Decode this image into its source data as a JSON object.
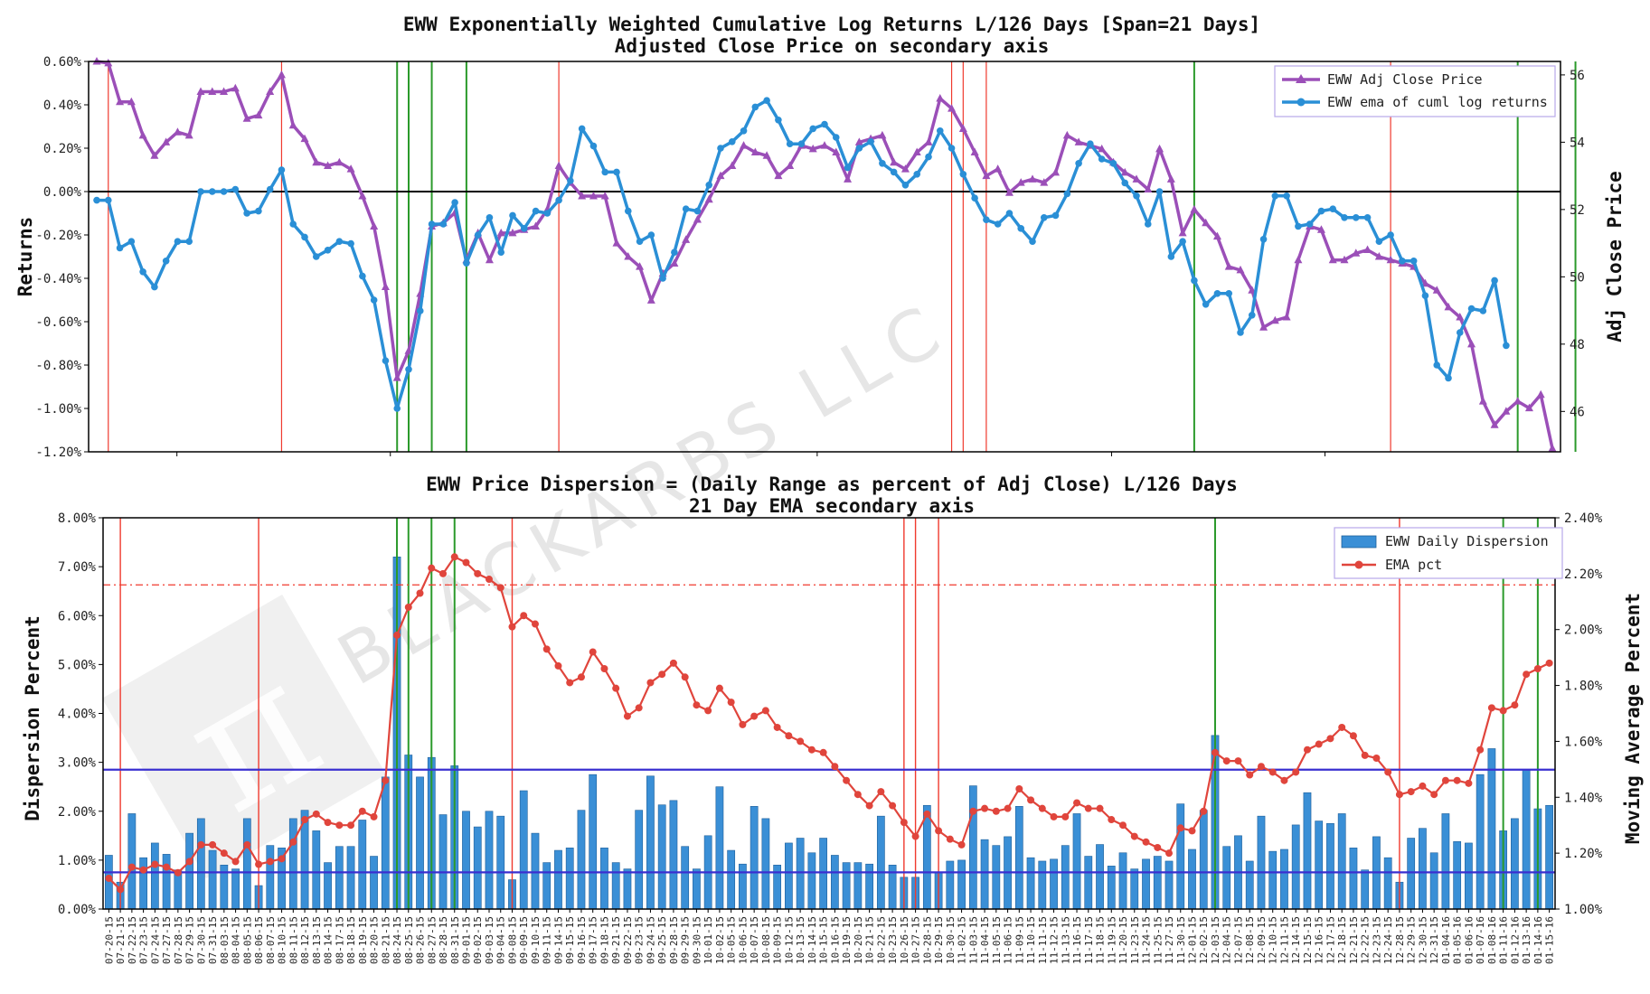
{
  "chart_data": [
    {
      "type": "line",
      "title": "EWW Exponentially Weighted Cumulative Log Returns L/126 Days [Span=21 Days]",
      "subtitle": "Adjusted Close Price on secondary axis",
      "ylabel": "Returns",
      "ylabel_right": "Adj Close Price",
      "ylim": [
        -1.2,
        0.6
      ],
      "ylim_right": [
        44.8,
        56.4
      ],
      "yticks": [
        "0.60%",
        "0.40%",
        "0.20%",
        "0.00%",
        "-0.20%",
        "-0.40%",
        "-0.60%",
        "-0.80%",
        "-1.00%",
        "-1.20%"
      ],
      "yticks_right": [
        "56",
        "54",
        "52",
        "50",
        "48",
        "46"
      ],
      "legend_position": "top-right",
      "zero_line": true,
      "series": [
        {
          "name": "EWW Adj Close Price",
          "axis": "right",
          "color": "#9b4fb8",
          "marker": "triangle",
          "values": [
            56.4,
            56.35,
            55.2,
            55.2,
            54.2,
            53.6,
            54.0,
            54.3,
            54.2,
            55.5,
            55.5,
            55.5,
            55.6,
            54.7,
            54.8,
            55.5,
            56.0,
            54.5,
            54.1,
            53.4,
            53.3,
            53.4,
            53.2,
            52.4,
            51.5,
            49.7,
            47.0,
            47.8,
            49.5,
            51.5,
            51.6,
            51.9,
            50.5,
            51.3,
            50.5,
            51.3,
            51.3,
            51.4,
            51.5,
            52.0,
            53.3,
            52.8,
            52.4,
            52.4,
            52.4,
            51.0,
            50.6,
            50.3,
            49.3,
            50.1,
            50.4,
            51.1,
            51.7,
            52.3,
            53.0,
            53.3,
            53.9,
            53.7,
            53.6,
            53.0,
            53.3,
            53.9,
            53.8,
            53.9,
            53.7,
            52.9,
            54.0,
            54.1,
            54.2,
            53.4,
            53.2,
            53.7,
            54.0,
            55.3,
            55.0,
            54.4,
            53.7,
            53.0,
            53.2,
            52.5,
            52.8,
            52.9,
            52.8,
            53.1,
            54.2,
            54.0,
            53.9,
            53.8,
            53.4,
            53.1,
            52.9,
            52.6,
            53.8,
            52.9,
            51.3,
            52.0,
            51.6,
            51.2,
            50.3,
            50.2,
            49.6,
            48.5,
            48.7,
            48.8,
            50.5,
            51.5,
            51.4,
            50.5,
            50.5,
            50.7,
            50.8,
            50.6,
            50.5,
            50.4,
            50.3,
            49.8,
            49.6,
            49.1,
            48.8,
            48.0,
            46.3,
            45.6,
            46.0,
            46.3,
            46.1,
            46.5,
            44.9
          ]
        },
        {
          "name": "EWW ema of cuml log returns",
          "axis": "left",
          "color": "#2a8fd6",
          "marker": "circle",
          "values": [
            -0.04,
            -0.04,
            -0.26,
            -0.23,
            -0.37,
            -0.44,
            -0.32,
            -0.23,
            -0.23,
            -0.0,
            -0.0,
            -0.0,
            0.01,
            -0.1,
            -0.09,
            0.01,
            0.1,
            -0.15,
            -0.21,
            -0.3,
            -0.27,
            -0.23,
            -0.24,
            -0.39,
            -0.5,
            -0.78,
            -1.0,
            -0.82,
            -0.55,
            -0.15,
            -0.15,
            -0.05,
            -0.33,
            -0.2,
            -0.12,
            -0.28,
            -0.11,
            -0.17,
            -0.09,
            -0.1,
            -0.04,
            0.05,
            0.29,
            0.21,
            0.09,
            0.09,
            -0.09,
            -0.23,
            -0.2,
            -0.4,
            -0.28,
            -0.08,
            -0.09,
            0.03,
            0.2,
            0.23,
            0.28,
            0.39,
            0.42,
            0.33,
            0.22,
            0.22,
            0.29,
            0.31,
            0.25,
            0.11,
            0.2,
            0.23,
            0.13,
            0.09,
            0.03,
            0.08,
            0.16,
            0.28,
            0.2,
            0.08,
            -0.03,
            -0.13,
            -0.15,
            -0.1,
            -0.17,
            -0.23,
            -0.12,
            -0.11,
            -0.01,
            0.13,
            0.22,
            0.15,
            0.13,
            0.04,
            -0.02,
            -0.15,
            0.0,
            -0.3,
            -0.23,
            -0.41,
            -0.52,
            -0.47,
            -0.47,
            -0.65,
            -0.57,
            -0.22,
            -0.02,
            -0.02,
            -0.16,
            -0.15,
            -0.09,
            -0.08,
            -0.12,
            -0.12,
            -0.12,
            -0.23,
            -0.2,
            -0.32,
            -0.32,
            -0.48,
            -0.8,
            -0.86,
            -0.65,
            -0.54,
            -0.55,
            -0.41,
            -0.71
          ]
        }
      ],
      "vlines": [
        {
          "index": 1,
          "color": "red"
        },
        {
          "index": 16,
          "color": "red"
        },
        {
          "index": 26,
          "color": "green"
        },
        {
          "index": 27,
          "color": "green"
        },
        {
          "index": 29,
          "color": "green"
        },
        {
          "index": 32,
          "color": "green"
        },
        {
          "index": 40,
          "color": "red"
        },
        {
          "index": 74,
          "color": "red"
        },
        {
          "index": 75,
          "color": "red"
        },
        {
          "index": 77,
          "color": "red"
        },
        {
          "index": 95,
          "color": "green"
        },
        {
          "index": 112,
          "color": "red"
        },
        {
          "index": 123,
          "color": "green"
        },
        {
          "index": 128,
          "color": "green"
        }
      ]
    },
    {
      "type": "bar",
      "title": "EWW Price Dispersion = (Daily Range as percent of Adj Close) L/126 Days",
      "subtitle": "21 Day EMA secondary axis",
      "ylabel": "Dispersion Percent",
      "ylabel_right": "Moving Average Percent",
      "ylim": [
        0,
        8
      ],
      "ylim_right": [
        1.0,
        2.4
      ],
      "yticks": [
        "8.00%",
        "7.00%",
        "6.00%",
        "5.00%",
        "4.00%",
        "3.00%",
        "2.00%",
        "1.00%",
        "0.00%"
      ],
      "yticks_right": [
        "2.40%",
        "2.20%",
        "2.00%",
        "1.80%",
        "1.60%",
        "1.40%",
        "1.20%",
        "1.00%"
      ],
      "legend_position": "top-right",
      "hlines": [
        {
          "value": 2.85,
          "axis": "left",
          "color": "#3a2fd0",
          "style": "solid"
        },
        {
          "value": 0.75,
          "axis": "left",
          "color": "#3a2fd0",
          "style": "solid"
        },
        {
          "value": 2.16,
          "axis": "right",
          "color": "red",
          "style": "dashdot"
        }
      ],
      "categories": [
        "07-20-15",
        "07-21-15",
        "07-22-15",
        "07-23-15",
        "07-24-15",
        "07-27-15",
        "07-28-15",
        "07-29-15",
        "07-30-15",
        "07-31-15",
        "08-03-15",
        "08-04-15",
        "08-05-15",
        "08-06-15",
        "08-07-15",
        "08-10-15",
        "08-11-15",
        "08-12-15",
        "08-13-15",
        "08-14-15",
        "08-17-15",
        "08-18-15",
        "08-19-15",
        "08-20-15",
        "08-21-15",
        "08-24-15",
        "08-25-15",
        "08-26-15",
        "08-27-15",
        "08-28-15",
        "08-31-15",
        "09-01-15",
        "09-02-15",
        "09-03-15",
        "09-04-15",
        "09-08-15",
        "09-09-15",
        "09-10-15",
        "09-11-15",
        "09-14-15",
        "09-15-15",
        "09-16-15",
        "09-17-15",
        "09-18-15",
        "09-21-15",
        "09-22-15",
        "09-23-15",
        "09-24-15",
        "09-25-15",
        "09-28-15",
        "09-29-15",
        "09-30-15",
        "10-01-15",
        "10-02-15",
        "10-05-15",
        "10-06-15",
        "10-07-15",
        "10-08-15",
        "10-09-15",
        "10-12-15",
        "10-13-15",
        "10-14-15",
        "10-15-15",
        "10-16-15",
        "10-19-15",
        "10-20-15",
        "10-21-15",
        "10-22-15",
        "10-23-15",
        "10-26-15",
        "10-27-15",
        "10-28-15",
        "10-29-15",
        "10-30-15",
        "11-02-15",
        "11-03-15",
        "11-04-15",
        "11-05-15",
        "11-06-15",
        "11-09-15",
        "11-10-15",
        "11-11-15",
        "11-12-15",
        "11-13-15",
        "11-16-15",
        "11-17-15",
        "11-18-15",
        "11-19-15",
        "11-20-15",
        "11-23-15",
        "11-24-15",
        "11-25-15",
        "11-27-15",
        "11-30-15",
        "12-01-15",
        "12-02-15",
        "12-03-15",
        "12-04-15",
        "12-07-15",
        "12-08-15",
        "12-09-15",
        "12-10-15",
        "12-11-15",
        "12-14-15",
        "12-15-15",
        "12-16-15",
        "12-17-15",
        "12-18-15",
        "12-21-15",
        "12-22-15",
        "12-23-15",
        "12-24-15",
        "12-28-15",
        "12-29-15",
        "12-30-15",
        "12-31-15",
        "01-04-16",
        "01-05-16",
        "01-06-16",
        "01-07-16",
        "01-08-16",
        "01-11-16",
        "01-12-16",
        "01-13-16",
        "01-14-16",
        "01-15-16"
      ],
      "series": [
        {
          "name": "EWW Daily Dispersion",
          "axis": "left",
          "color": "#3a8fd6",
          "kind": "bar",
          "values": [
            1.1,
            0.55,
            1.95,
            1.05,
            1.35,
            1.12,
            0.8,
            1.55,
            1.85,
            1.2,
            0.9,
            0.82,
            1.85,
            0.48,
            1.3,
            1.25,
            1.85,
            2.02,
            1.6,
            0.95,
            1.28,
            1.28,
            1.82,
            1.08,
            2.7,
            7.2,
            3.15,
            2.7,
            3.1,
            1.93,
            2.93,
            2.0,
            1.68,
            2.0,
            1.9,
            0.6,
            2.42,
            1.55,
            0.95,
            1.2,
            1.25,
            2.02,
            2.75,
            1.25,
            0.95,
            0.82,
            2.02,
            2.72,
            2.13,
            2.22,
            1.28,
            0.82,
            1.5,
            2.5,
            1.2,
            0.92,
            2.1,
            1.85,
            0.9,
            1.35,
            1.45,
            1.15,
            1.45,
            1.1,
            0.95,
            0.95,
            0.92,
            1.9,
            0.9,
            0.65,
            0.65,
            2.12,
            0.75,
            0.98,
            1.0,
            2.52,
            1.42,
            1.3,
            1.48,
            2.1,
            1.05,
            0.98,
            1.02,
            1.3,
            1.95,
            1.08,
            1.32,
            0.88,
            1.15,
            0.82,
            1.02,
            1.08,
            0.98,
            2.15,
            1.22,
            2.02,
            3.55,
            1.28,
            1.5,
            0.98,
            1.9,
            1.18,
            1.22,
            1.72,
            2.38,
            1.8,
            1.75,
            1.95,
            1.25,
            0.8,
            1.48,
            1.05,
            0.55,
            1.45,
            1.65,
            1.15,
            1.95,
            1.38,
            1.35,
            2.75,
            3.28,
            1.6,
            1.85,
            2.85,
            2.05,
            2.12
          ]
        },
        {
          "name": "EMA pct",
          "axis": "right",
          "color": "#e0453c",
          "kind": "line",
          "marker": "circle",
          "values": [
            1.11,
            1.07,
            1.15,
            1.14,
            1.16,
            1.15,
            1.13,
            1.17,
            1.23,
            1.23,
            1.2,
            1.17,
            1.23,
            1.16,
            1.17,
            1.18,
            1.24,
            1.32,
            1.34,
            1.31,
            1.3,
            1.3,
            1.35,
            1.33,
            1.46,
            1.98,
            2.08,
            2.13,
            2.22,
            2.2,
            2.26,
            2.24,
            2.2,
            2.18,
            2.15,
            2.01,
            2.05,
            2.02,
            1.93,
            1.87,
            1.81,
            1.83,
            1.92,
            1.86,
            1.79,
            1.69,
            1.72,
            1.81,
            1.84,
            1.88,
            1.83,
            1.73,
            1.71,
            1.79,
            1.74,
            1.66,
            1.69,
            1.71,
            1.65,
            1.62,
            1.6,
            1.57,
            1.56,
            1.51,
            1.46,
            1.41,
            1.37,
            1.42,
            1.37,
            1.31,
            1.26,
            1.34,
            1.28,
            1.25,
            1.23,
            1.35,
            1.36,
            1.35,
            1.36,
            1.43,
            1.39,
            1.36,
            1.33,
            1.33,
            1.38,
            1.36,
            1.36,
            1.32,
            1.3,
            1.26,
            1.24,
            1.22,
            1.2,
            1.29,
            1.28,
            1.35,
            1.56,
            1.53,
            1.53,
            1.48,
            1.51,
            1.49,
            1.46,
            1.49,
            1.57,
            1.59,
            1.61,
            1.65,
            1.62,
            1.55,
            1.54,
            1.49,
            1.41,
            1.42,
            1.44,
            1.41,
            1.46,
            1.46,
            1.45,
            1.57,
            1.72,
            1.71,
            1.73,
            1.84,
            1.86,
            1.88
          ]
        }
      ],
      "vlines": [
        {
          "index": 1,
          "color": "red"
        },
        {
          "index": 13,
          "color": "red"
        },
        {
          "index": 25,
          "color": "green"
        },
        {
          "index": 26,
          "color": "green"
        },
        {
          "index": 28,
          "color": "green"
        },
        {
          "index": 30,
          "color": "green"
        },
        {
          "index": 35,
          "color": "red"
        },
        {
          "index": 69,
          "color": "red"
        },
        {
          "index": 70,
          "color": "red"
        },
        {
          "index": 72,
          "color": "red"
        },
        {
          "index": 96,
          "color": "green"
        },
        {
          "index": 112,
          "color": "red"
        },
        {
          "index": 121,
          "color": "green"
        },
        {
          "index": 124,
          "color": "green"
        }
      ]
    }
  ],
  "watermark": {
    "text": "BLACKARBS LLC",
    "logo": "pi-logo"
  }
}
